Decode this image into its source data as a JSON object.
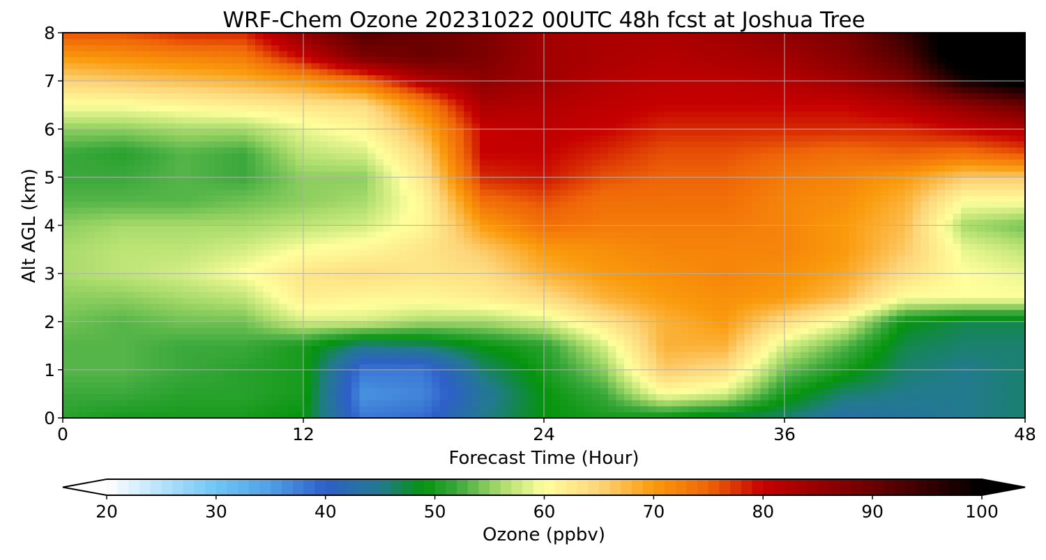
{
  "chart_data": {
    "type": "heatmap",
    "title": "WRF-Chem Ozone  20231022 00UTC 48h fcst at Joshua Tree",
    "xlabel": "Forecast Time (Hour)",
    "ylabel": "Alt AGL (km)",
    "xlim": [
      0,
      48
    ],
    "ylim": [
      0,
      8
    ],
    "xticks": [
      0,
      12,
      24,
      36,
      48
    ],
    "yticks": [
      0,
      1,
      2,
      3,
      4,
      5,
      6,
      7,
      8
    ],
    "grid": true,
    "x": [
      0,
      3,
      6,
      9,
      12,
      15,
      18,
      21,
      24,
      27,
      30,
      33,
      36,
      39,
      42,
      45,
      48
    ],
    "y": [
      0,
      0.5,
      1,
      1.5,
      2,
      2.5,
      3,
      3.5,
      4,
      4.5,
      5,
      5.5,
      6,
      6.5,
      7,
      7.5,
      8
    ],
    "z": [
      [
        51,
        50,
        50,
        50,
        49,
        38,
        39,
        45,
        49,
        50,
        49,
        47,
        46,
        43,
        44,
        45,
        46
      ],
      [
        52,
        52,
        51,
        51,
        50,
        36,
        37,
        44,
        49,
        52,
        60,
        58,
        50,
        46,
        45,
        45,
        46
      ],
      [
        53,
        53,
        52,
        51,
        50,
        38,
        38,
        46,
        50,
        55,
        66,
        64,
        54,
        50,
        46,
        45,
        46
      ],
      [
        53,
        53,
        52,
        52,
        50,
        45,
        46,
        49,
        51,
        58,
        68,
        68,
        58,
        53,
        47,
        46,
        46
      ],
      [
        54,
        53,
        54,
        54,
        58,
        58,
        56,
        56,
        58,
        63,
        68,
        70,
        64,
        59,
        49,
        47,
        47
      ],
      [
        55,
        55,
        56,
        57,
        62,
        61,
        61,
        62,
        64,
        68,
        70,
        71,
        70,
        67,
        60,
        60,
        60
      ],
      [
        56,
        57,
        58,
        60,
        63,
        64,
        63,
        64,
        68,
        70,
        71,
        72,
        71,
        69,
        64,
        60,
        59
      ],
      [
        56,
        57,
        57,
        58,
        60,
        61,
        63,
        66,
        70,
        71,
        72,
        72,
        72,
        70,
        66,
        59,
        57
      ],
      [
        55,
        56,
        56,
        56,
        57,
        58,
        61,
        70,
        74,
        73,
        73,
        73,
        72,
        70,
        67,
        56,
        54
      ],
      [
        53,
        53,
        53,
        54,
        55,
        56,
        61,
        74,
        76,
        74,
        74,
        74,
        72,
        71,
        68,
        60,
        60
      ],
      [
        52,
        52,
        53,
        52,
        55,
        55,
        63,
        78,
        79,
        76,
        75,
        75,
        73,
        72,
        70,
        66,
        66
      ],
      [
        52,
        51,
        53,
        52,
        57,
        58,
        65,
        80,
        80,
        78,
        76,
        76,
        75,
        74,
        75,
        74,
        76
      ],
      [
        55,
        55,
        56,
        56,
        59,
        61,
        68,
        80,
        81,
        80,
        78,
        78,
        78,
        78,
        78,
        80,
        82
      ],
      [
        60,
        60,
        61,
        62,
        63,
        64,
        72,
        83,
        82,
        81,
        80,
        80,
        80,
        80,
        82,
        86,
        90
      ],
      [
        65,
        66,
        67,
        68,
        70,
        74,
        82,
        86,
        84,
        82,
        81,
        81,
        82,
        84,
        88,
        98,
        102
      ],
      [
        70,
        71,
        72,
        73,
        80,
        88,
        90,
        88,
        84,
        83,
        82,
        83,
        84,
        87,
        92,
        105,
        105
      ],
      [
        76,
        76,
        78,
        78,
        86,
        92,
        90,
        88,
        84,
        83,
        83,
        84,
        86,
        88,
        95,
        105,
        105
      ]
    ],
    "colorbar": {
      "label": "Ozone  (ppbv)",
      "min": 20,
      "max": 100,
      "ticks": [
        20,
        30,
        40,
        50,
        60,
        70,
        80,
        90,
        100
      ],
      "extend": "both",
      "stops": [
        {
          "v": 20,
          "c": "#ffffff"
        },
        {
          "v": 30,
          "c": "#6ec6f5"
        },
        {
          "v": 35,
          "c": "#4f9fe6"
        },
        {
          "v": 40,
          "c": "#2e5fc9"
        },
        {
          "v": 45,
          "c": "#227a8e"
        },
        {
          "v": 49,
          "c": "#05940d"
        },
        {
          "v": 52,
          "c": "#3aa83c"
        },
        {
          "v": 56,
          "c": "#a8db6b"
        },
        {
          "v": 60,
          "c": "#ffff9c"
        },
        {
          "v": 65,
          "c": "#fdd57a"
        },
        {
          "v": 70,
          "c": "#fa9a0c"
        },
        {
          "v": 75,
          "c": "#ef6508"
        },
        {
          "v": 80,
          "c": "#c60000"
        },
        {
          "v": 90,
          "c": "#6b0000"
        },
        {
          "v": 100,
          "c": "#000000"
        }
      ]
    }
  }
}
